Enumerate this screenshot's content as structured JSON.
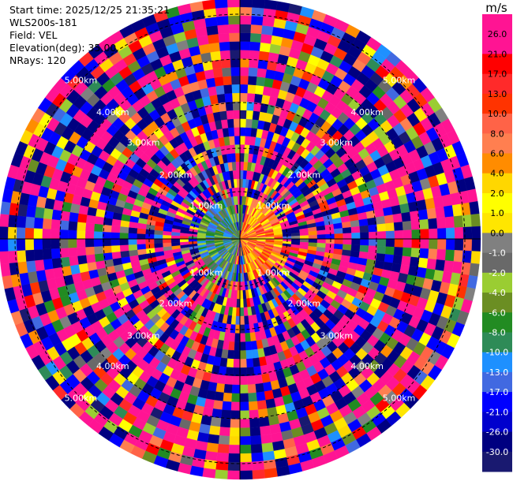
{
  "header": {
    "start_time": "Start time: 2025/12/25 21:35:21",
    "site": "WLS200s-181",
    "field": "Field: VEL",
    "elevation": "Elevation(deg): 35.00",
    "nrays": "NRays: 120"
  },
  "chart_data": {
    "type": "heatmap",
    "subtype": "polar-ppi",
    "field": "VEL",
    "nrays": 120,
    "elevation_deg": 35.0,
    "range_rings": [
      "1.00km",
      "2.00km",
      "3.00km",
      "4.00km",
      "5.00km"
    ],
    "colorbar": {
      "unit": "m/s",
      "tick_labels": [
        "26.0",
        "21.0",
        "17.0",
        "13.0",
        "10.0",
        "8.0",
        "6.0",
        "4.0",
        "2.0",
        "1.0",
        "0.0",
        "-1.0",
        "-2.0",
        "-4.0",
        "-6.0",
        "-8.0",
        "-10.0",
        "-13.0",
        "-17.0",
        "-21.0",
        "-26.0",
        "-30.0"
      ],
      "colors": [
        "#ff1493",
        "#ff1493",
        "#ff0000",
        "#ff2a2a",
        "#ff3300",
        "#ff6347",
        "#ff7f50",
        "#ff8c00",
        "#ffd700",
        "#ffff00",
        "#ffe600",
        "#808080",
        "#696969",
        "#9acd32",
        "#6b8e23",
        "#228b22",
        "#2e8b57",
        "#1e90ff",
        "#4169e1",
        "#0000ff",
        "#0000cd",
        "#000080",
        "#191970"
      ]
    }
  }
}
